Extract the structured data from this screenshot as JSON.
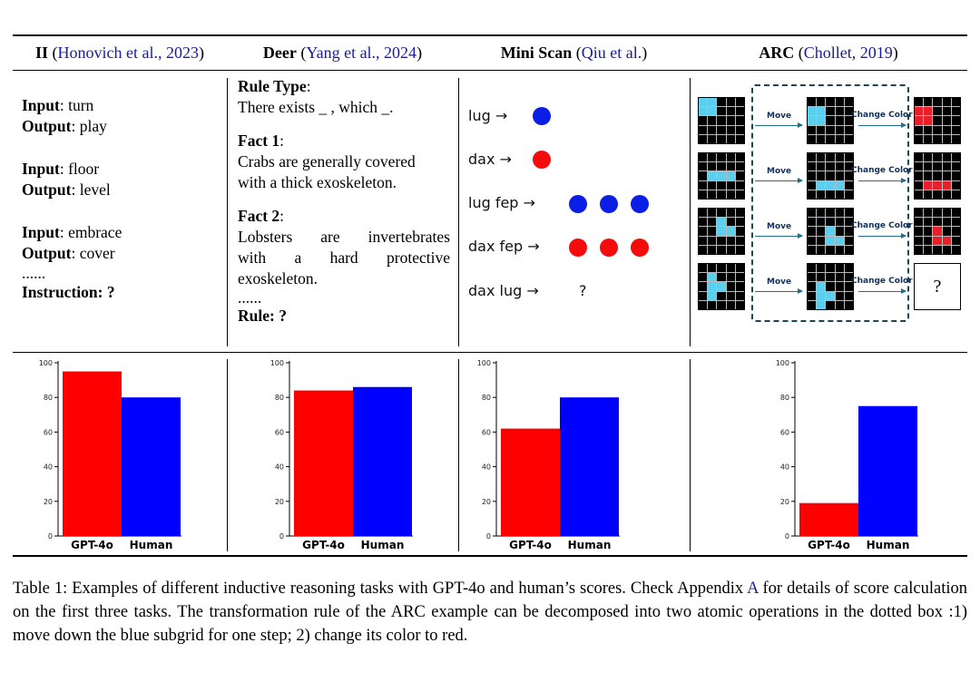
{
  "headers": [
    {
      "name": "II",
      "cite": "Honovich et al., 2023"
    },
    {
      "name": "Deer",
      "cite": "Yang et al., 2024"
    },
    {
      "name": "Mini Scan",
      "cite": "Qiu et al."
    },
    {
      "name": "ARC",
      "cite": "Chollet, 2019"
    }
  ],
  "ii": {
    "input_label": "Input",
    "output_label": "Output",
    "pairs": [
      {
        "input": ": turn",
        "output": ": play"
      },
      {
        "input": ": floor",
        "output": ": level"
      },
      {
        "input": ": embrace",
        "output": ": cover"
      }
    ],
    "ellipsis": "......",
    "instruction": "Instruction: ?"
  },
  "deer": {
    "rule_type_label": "Rule Type",
    "colon": ":",
    "rule_type_text": "There exists _ , which _.",
    "fact1_label": "Fact 1",
    "fact1_lines": [
      "Crabs are generally covered",
      "with a thick exoskeleton."
    ],
    "fact2_label": "Fact 2",
    "fact2_lines": [
      "Lobsters are invertebrates",
      "with a hard protective",
      "exoskeleton."
    ],
    "ellipsis": "......",
    "rule_q": "Rule: ?"
  },
  "scan": {
    "rows": [
      "lug →",
      "dax →",
      "lug fep →",
      "dax fep →",
      "dax lug →"
    ],
    "question": "?",
    "blue": "#0a1ee6",
    "red": "#f40c0c"
  },
  "arc": {
    "move_label": "Move",
    "change_label": "Change Color",
    "question": "?",
    "input_grids": [
      [
        [
          0,
          0
        ],
        [
          0,
          1
        ],
        [
          1,
          0
        ],
        [
          1,
          1
        ]
      ],
      [
        [
          2,
          1
        ],
        [
          2,
          2
        ],
        [
          2,
          3
        ]
      ],
      [
        [
          1,
          2
        ],
        [
          2,
          2
        ],
        [
          2,
          3
        ]
      ],
      [
        [
          1,
          1
        ],
        [
          2,
          1
        ],
        [
          2,
          2
        ],
        [
          3,
          1
        ]
      ]
    ]
  },
  "chart_data": [
    {
      "type": "bar",
      "categories": [
        "GPT-4o",
        "Human"
      ],
      "values": [
        95,
        80
      ],
      "colors": [
        "#ff0000",
        "#0000ff"
      ],
      "ylim": [
        0,
        100
      ],
      "yticks": [
        "0",
        "20",
        "40",
        "60",
        "80",
        "100"
      ]
    },
    {
      "type": "bar",
      "categories": [
        "GPT-4o",
        "Human"
      ],
      "values": [
        84,
        86
      ],
      "colors": [
        "#ff0000",
        "#0000ff"
      ],
      "ylim": [
        0,
        100
      ],
      "yticks": [
        "0",
        "20",
        "40",
        "60",
        "80",
        "100"
      ]
    },
    {
      "type": "bar",
      "categories": [
        "GPT-4o",
        "Human"
      ],
      "values": [
        62,
        80
      ],
      "colors": [
        "#ff0000",
        "#0000ff"
      ],
      "ylim": [
        0,
        100
      ],
      "yticks": [
        "0",
        "20",
        "40",
        "60",
        "80",
        "100"
      ]
    },
    {
      "type": "bar",
      "categories": [
        "GPT-4o",
        "Human"
      ],
      "values": [
        19,
        75
      ],
      "colors": [
        "#ff0000",
        "#0000ff"
      ],
      "ylim": [
        0,
        100
      ],
      "yticks": [
        "0",
        "20",
        "40",
        "60",
        "80",
        "100"
      ]
    }
  ],
  "caption": {
    "part1": "Table 1: Examples of different inductive reasoning tasks with GPT-4o and human’s scores. Check Appendix ",
    "link": "A",
    "part2": " for details of score calculation on the first three tasks. The transformation rule of the ARC example can be decomposed into two atomic operations in the dotted box :1) move down the blue subgrid for one step; 2) change its color to red."
  }
}
